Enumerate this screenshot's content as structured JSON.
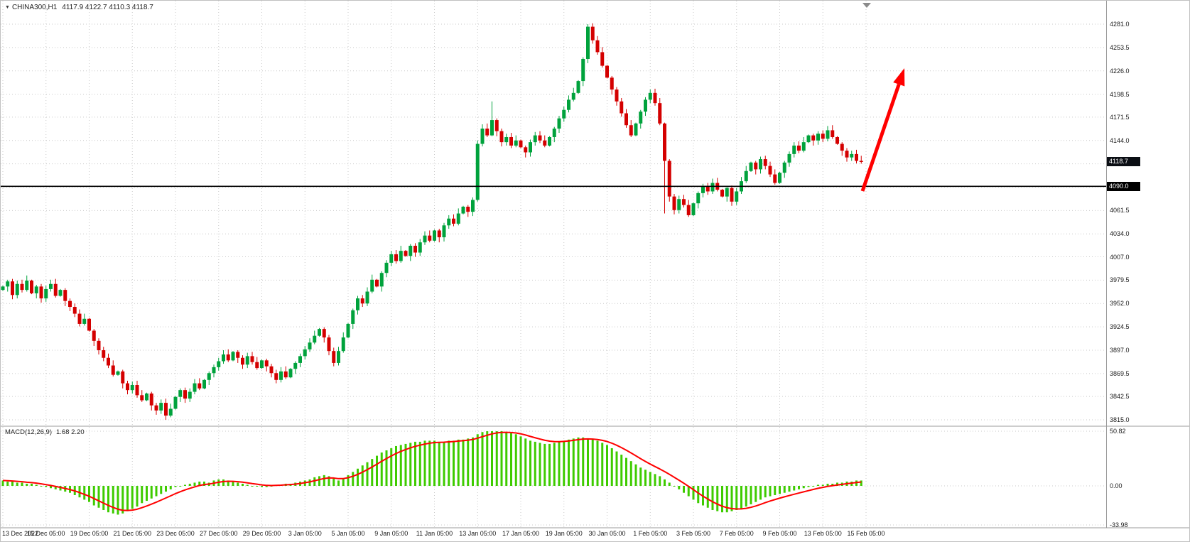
{
  "symbol": {
    "triangle_icon": "▼",
    "name": "CHINA300,H1",
    "ohlc_text": "4117.9 4122.7 4110.3 4118.7"
  },
  "indicator": {
    "name": "MACD(12,26,9)",
    "values_text": "1.68 2.20"
  },
  "axis": {
    "price_ticks": [
      {
        "label": "4281.0",
        "price": 4281.0
      },
      {
        "label": "4253.5",
        "price": 4253.5
      },
      {
        "label": "4226.0",
        "price": 4226.0
      },
      {
        "label": "4198.5",
        "price": 4198.5
      },
      {
        "label": "4171.5",
        "price": 4171.5
      },
      {
        "label": "4144.0",
        "price": 4144.0
      },
      {
        "label": "4061.5",
        "price": 4061.5
      },
      {
        "label": "4034.0",
        "price": 4034.0
      },
      {
        "label": "4007.0",
        "price": 4007.0
      },
      {
        "label": "3979.5",
        "price": 3979.5
      },
      {
        "label": "3952.0",
        "price": 3952.0
      },
      {
        "label": "3924.5",
        "price": 3924.5
      },
      {
        "label": "3897.0",
        "price": 3897.0
      },
      {
        "label": "3869.5",
        "price": 3869.5
      },
      {
        "label": "3842.5",
        "price": 3842.5
      },
      {
        "label": "3815.0",
        "price": 3815.0
      }
    ],
    "grid_prices": [
      4281.0,
      4253.5,
      4226.0,
      4198.5,
      4171.5,
      4144.0,
      4116.5,
      4089.0,
      4061.5,
      4034.0,
      4007.0,
      3979.5,
      3952.0,
      3924.5,
      3897.0,
      3869.5,
      3842.5,
      3815.0
    ],
    "macd_ticks": [
      {
        "label": "50.82",
        "value": 50.82
      },
      {
        "label": "0.00",
        "value": 0
      },
      {
        "label": "-33.98",
        "value": -33.98
      }
    ],
    "time_labels": [
      "13 Dec 2022",
      "15 Dec 05:00",
      "19 Dec 05:00",
      "21 Dec 05:00",
      "23 Dec 05:00",
      "27 Dec 05:00",
      "29 Dec 05:00",
      "3 Jan 05:00",
      "5 Jan 05:00",
      "9 Jan 05:00",
      "11 Jan 05:00",
      "13 Jan 05:00",
      "17 Jan 05:00",
      "19 Jan 05:00",
      "30 Jan 05:00",
      "1 Feb 05:00",
      "3 Feb 05:00",
      "7 Feb 05:00",
      "9 Feb 05:00",
      "13 Feb 05:00",
      "15 Feb 05:00"
    ]
  },
  "badges": {
    "current_price": {
      "label": "4118.7",
      "price": 4118.7,
      "bg": "#0b0e14"
    },
    "hline_price": {
      "label": "4090.0",
      "price": 4090.0,
      "bg": "#000000"
    }
  },
  "chart_data": {
    "type": "candlestick",
    "title": "CHINA300,H1",
    "ohlc_display": {
      "open": 4117.9,
      "high": 4122.7,
      "low": 4110.3,
      "close": 4118.7
    },
    "price_axis_range": [
      3815.0,
      4281.0
    ],
    "labels_every_n_candles": 9,
    "candles_close": [
      3972,
      3978,
      3962,
      3975,
      3968,
      3979,
      3964,
      3972,
      3958,
      3969,
      3975,
      3961,
      3968,
      3955,
      3948,
      3940,
      3928,
      3934,
      3920,
      3908,
      3897,
      3888,
      3879,
      3868,
      3872,
      3858,
      3850,
      3856,
      3844,
      3838,
      3846,
      3832,
      3826,
      3835,
      3820,
      3828,
      3842,
      3850,
      3840,
      3848,
      3858,
      3852,
      3862,
      3870,
      3877,
      3884,
      3892,
      3885,
      3895,
      3888,
      3880,
      3890,
      3883,
      3876,
      3885,
      3878,
      3870,
      3862,
      3872,
      3865,
      3875,
      3882,
      3890,
      3898,
      3906,
      3914,
      3922,
      3912,
      3896,
      3882,
      3896,
      3912,
      3928,
      3944,
      3958,
      3952,
      3966,
      3980,
      3972,
      3988,
      4000,
      4010,
      4002,
      4014,
      4008,
      4020,
      4012,
      4024,
      4032,
      4026,
      4038,
      4030,
      4044,
      4052,
      4046,
      4058,
      4066,
      4060,
      4074,
      4140,
      4158,
      4150,
      4168,
      4155,
      4142,
      4148,
      4138,
      4144,
      4136,
      4130,
      4142,
      4150,
      4144,
      4138,
      4148,
      4158,
      4170,
      4180,
      4192,
      4200,
      4214,
      4240,
      4278,
      4262,
      4248,
      4232,
      4218,
      4204,
      4190,
      4176,
      4162,
      4150,
      4164,
      4178,
      4192,
      4200,
      4188,
      4164,
      4120,
      4078,
      4062,
      4075,
      4068,
      4056,
      4070,
      4082,
      4090,
      4084,
      4094,
      4086,
      4078,
      4088,
      4072,
      4084,
      4096,
      4108,
      4118,
      4110,
      4122,
      4114,
      4104,
      4094,
      4106,
      4118,
      4128,
      4138,
      4132,
      4142,
      4150,
      4144,
      4152,
      4146,
      4156,
      4148,
      4140,
      4132,
      4124,
      4128,
      4120,
      4118.7
    ],
    "first_open": 3968,
    "wick_overrides": {
      "34": {
        "low": 3815
      },
      "99": {
        "low": 4072
      },
      "102": {
        "high": 4190
      },
      "122": {
        "high": 4281
      },
      "138": {
        "low": 4058
      }
    },
    "hline": {
      "price": 4090.0
    },
    "current_price": 4118.7,
    "macd": {
      "range": [
        -33.98,
        50.82
      ],
      "histogram": [
        5,
        4,
        4,
        3,
        3,
        2,
        2,
        1,
        0,
        -1,
        -2,
        -3,
        -4,
        -5,
        -6,
        -8,
        -10,
        -12,
        -14,
        -17,
        -19,
        -21,
        -23,
        -24,
        -25,
        -24,
        -22,
        -20,
        -18,
        -15,
        -13,
        -11,
        -9,
        -7,
        -5,
        -3,
        -1,
        0,
        1,
        2,
        3,
        4,
        4,
        3,
        5,
        6,
        6,
        5,
        4,
        3,
        2,
        1,
        0,
        0,
        -1,
        -1,
        0,
        1,
        1,
        2,
        2,
        3,
        4,
        5,
        6,
        8,
        9,
        10,
        9,
        7,
        5,
        7,
        10,
        13,
        16,
        19,
        22,
        25,
        28,
        31,
        33,
        35,
        37,
        38,
        39,
        40,
        41,
        41,
        42,
        42,
        42,
        41,
        41,
        42,
        42,
        43,
        43,
        44,
        45,
        48,
        50,
        51,
        52,
        52,
        51,
        50,
        49,
        48,
        46,
        44,
        42,
        41,
        40,
        39,
        39,
        40,
        41,
        42,
        43,
        44,
        45,
        45,
        44,
        43,
        42,
        40,
        38,
        35,
        32,
        29,
        26,
        23,
        20,
        17,
        15,
        13,
        11,
        9,
        6,
        3,
        0,
        -3,
        -6,
        -9,
        -12,
        -15,
        -17,
        -19,
        -21,
        -22,
        -23,
        -23,
        -22,
        -21,
        -20,
        -18,
        -16,
        -14,
        -12,
        -10,
        -9,
        -8,
        -7,
        -6,
        -5,
        -4,
        -3,
        -2,
        -1,
        0,
        1,
        1,
        2,
        2,
        3,
        3,
        4,
        4,
        5,
        5
      ]
    },
    "annotation_arrow": {
      "from": [
        1213,
        268
      ],
      "to": [
        1272,
        95
      ]
    }
  },
  "colors": {
    "bg": "#ffffff",
    "grid": "#c9c9c9",
    "up": "#00a23c",
    "down": "#d40000",
    "hist": "#3ecb00",
    "signal": "#ff0000",
    "arrow": "#ff0000",
    "hline": "#000000",
    "separator": "#9b9b9b",
    "scale_text": "#1a1a1a"
  }
}
